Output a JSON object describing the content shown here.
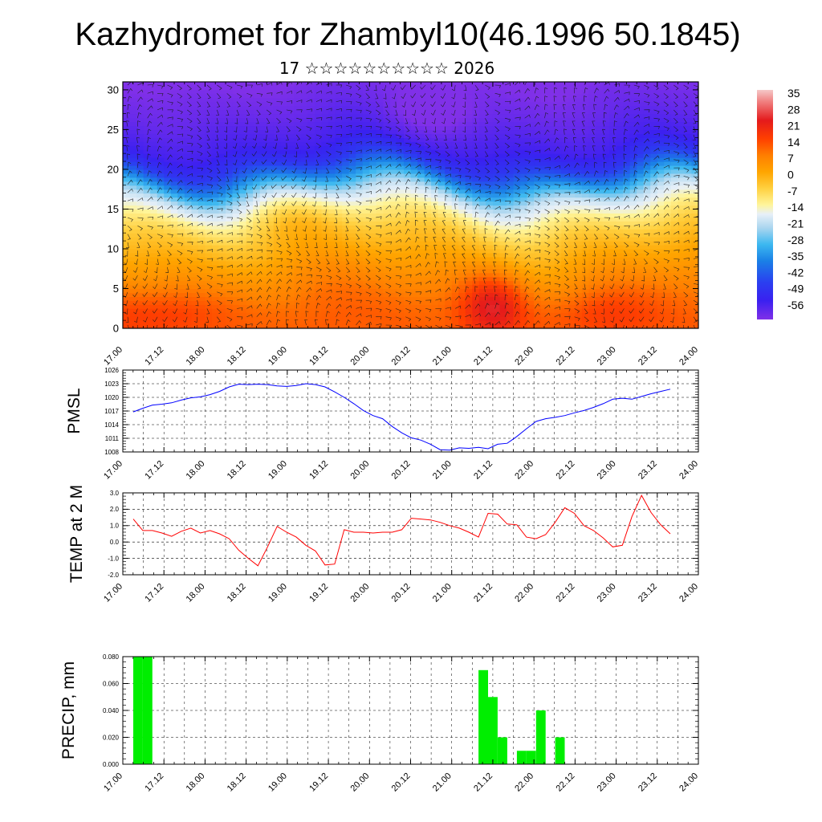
{
  "page": {
    "title": "Kazhydromet for Zhambyl10(46.1996 50.1845)",
    "subtitle": "17 ☆☆☆☆☆☆☆☆☆☆ 2026"
  },
  "chart_data": [
    {
      "id": "cross-section",
      "type": "heatmap",
      "title": "",
      "xlabel": "",
      "ylabel": "",
      "x_ticks": [
        "17.00",
        "17.12",
        "18.00",
        "18.12",
        "19.00",
        "19.12",
        "20.00",
        "20.12",
        "21.00",
        "21.12",
        "22.00",
        "22.12",
        "23.00",
        "23.12",
        "24.00"
      ],
      "y_ticks": [
        "0",
        "5",
        "10",
        "15",
        "20",
        "25",
        "30"
      ],
      "xlim": [
        0,
        168
      ],
      "ylim": [
        0,
        31
      ],
      "colorbar": {
        "labels": [
          "35",
          "28",
          "21",
          "14",
          "7",
          "0",
          "-7",
          "-14",
          "-21",
          "-28",
          "-35",
          "-42",
          "-49",
          "-56"
        ],
        "stops": [
          {
            "v": 38,
            "color": "#f5c8c8"
          },
          {
            "v": 33,
            "color": "#f08080"
          },
          {
            "v": 25,
            "color": "#e41a1c"
          },
          {
            "v": 17,
            "color": "#ff4000"
          },
          {
            "v": 10,
            "color": "#ff7f00"
          },
          {
            "v": 3,
            "color": "#ffa500"
          },
          {
            "v": -4,
            "color": "#ffd040"
          },
          {
            "v": -11,
            "color": "#fff59a"
          },
          {
            "v": -15,
            "color": "#e8f0f8"
          },
          {
            "v": -21,
            "color": "#a9d5ef"
          },
          {
            "v": -28,
            "color": "#3cb8f0"
          },
          {
            "v": -35,
            "color": "#1a80e6"
          },
          {
            "v": -44,
            "color": "#2a40f0"
          },
          {
            "v": -52,
            "color": "#3a20f0"
          },
          {
            "v": -60,
            "color": "#8030e8"
          }
        ]
      },
      "color_field_profile": [
        {
          "z": 0,
          "v": 14
        },
        {
          "z": 3,
          "v": 12
        },
        {
          "z": 6,
          "v": 8
        },
        {
          "z": 9,
          "v": 3
        },
        {
          "z": 12,
          "v": -3
        },
        {
          "z": 14,
          "v": -9
        },
        {
          "z": 15,
          "v": -13
        },
        {
          "z": 16.5,
          "v": -18
        },
        {
          "z": 18,
          "v": -28
        },
        {
          "z": 19.5,
          "v": -38
        },
        {
          "z": 21,
          "v": -47
        },
        {
          "z": 23,
          "v": -53
        },
        {
          "z": 25,
          "v": -55
        },
        {
          "z": 27,
          "v": -57
        },
        {
          "z": 30,
          "v": -59
        },
        {
          "z": 31,
          "v": -60
        }
      ],
      "hotspots": [
        {
          "t": 10,
          "z": 2,
          "dv": 6,
          "rt": 18,
          "rz": 3
        },
        {
          "t": 108,
          "z": 3,
          "dv": 14,
          "rt": 9,
          "rz": 4
        },
        {
          "t": 140,
          "z": 2,
          "dv": 5,
          "rt": 16,
          "rz": 3
        },
        {
          "t": 50,
          "z": 14,
          "dv": 4,
          "rt": 14,
          "rz": 3
        },
        {
          "t": 90,
          "z": 27,
          "dv": -5,
          "rt": 12,
          "rz": 3
        }
      ]
    },
    {
      "id": "pmsl",
      "type": "line",
      "title": "",
      "xlabel": "",
      "ylabel": "PMSL",
      "color": "#0000ff",
      "x_ticks": [
        "17.00",
        "17.12",
        "18.00",
        "18.12",
        "19.00",
        "19.12",
        "20.00",
        "20.12",
        "21.00",
        "21.12",
        "22.00",
        "22.12",
        "23.00",
        "23.12",
        "24.00"
      ],
      "y_ticks": [
        "1008",
        "1011",
        "1014",
        "1017",
        "1020",
        "1023",
        "1026"
      ],
      "ylim": [
        1008,
        1026
      ],
      "x": [
        0,
        3,
        6,
        9,
        12,
        15,
        18,
        21,
        24,
        27,
        30,
        33,
        36,
        39,
        42,
        45,
        48,
        51,
        54,
        57,
        60,
        63,
        66,
        69,
        72,
        75,
        78,
        81,
        84,
        87,
        90,
        93,
        96,
        99,
        102,
        105,
        108,
        111,
        114,
        117,
        120,
        123,
        126,
        129,
        132,
        135,
        138,
        141,
        144,
        147,
        150,
        153,
        156,
        159,
        162,
        165,
        168
      ],
      "values": [
        1016.8,
        1017.6,
        1018.3,
        1018.5,
        1018.8,
        1019.4,
        1019.9,
        1020.1,
        1020.6,
        1021.3,
        1022.3,
        1022.9,
        1022.8,
        1022.9,
        1022.8,
        1022.5,
        1022.4,
        1022.6,
        1023.0,
        1022.8,
        1022.3,
        1021.2,
        1020.0,
        1018.6,
        1017.1,
        1016.0,
        1015.3,
        1013.6,
        1012.2,
        1011.1,
        1010.6,
        1009.7,
        1008.5,
        1008.4,
        1008.9,
        1008.8,
        1009.0,
        1008.7,
        1009.7,
        1009.9,
        1011.4,
        1013.1,
        1014.7,
        1015.3,
        1015.6,
        1016.0,
        1016.6,
        1017.1,
        1017.8,
        1018.6,
        1019.6,
        1019.8,
        1019.6,
        1020.2,
        1020.8,
        1021.3,
        1021.8
      ]
    },
    {
      "id": "temp2m",
      "type": "line",
      "title": "",
      "xlabel": "",
      "ylabel": "TEMP at 2 M",
      "color": "#ff0000",
      "x_ticks": [
        "17.00",
        "17.12",
        "18.00",
        "18.12",
        "19.00",
        "19.12",
        "20.00",
        "20.12",
        "21.00",
        "21.12",
        "22.00",
        "22.12",
        "23.00",
        "23.12",
        "24.00"
      ],
      "y_ticks": [
        "-2.0",
        "-1.0",
        "0.0",
        "1.0",
        "2.0",
        "3.0"
      ],
      "ylim": [
        -2,
        3
      ],
      "x": [
        0,
        3,
        6,
        9,
        12,
        15,
        18,
        21,
        24,
        27,
        30,
        33,
        36,
        39,
        42,
        45,
        48,
        51,
        54,
        57,
        60,
        63,
        66,
        69,
        72,
        75,
        78,
        81,
        84,
        87,
        90,
        93,
        96,
        99,
        102,
        105,
        108,
        111,
        114,
        117,
        120,
        123,
        126,
        129,
        132,
        135,
        138,
        141,
        144,
        147,
        150,
        153,
        156,
        159,
        162,
        165,
        168
      ],
      "values": [
        1.4,
        0.7,
        0.7,
        0.55,
        0.35,
        0.65,
        0.85,
        0.55,
        0.7,
        0.5,
        0.2,
        -0.5,
        -1.0,
        -1.45,
        -0.3,
        0.95,
        0.6,
        0.3,
        -0.2,
        -0.55,
        -1.4,
        -1.35,
        0.75,
        0.6,
        0.6,
        0.55,
        0.6,
        0.6,
        0.75,
        1.45,
        1.4,
        1.35,
        1.2,
        1.0,
        0.85,
        0.6,
        0.3,
        1.75,
        1.7,
        1.1,
        1.05,
        0.3,
        0.2,
        0.45,
        1.2,
        2.1,
        1.75,
        1.0,
        0.7,
        0.25,
        -0.3,
        -0.2,
        1.55,
        2.85,
        1.8,
        1.05,
        0.5
      ]
    },
    {
      "id": "precip",
      "type": "bar",
      "title": "",
      "xlabel": "",
      "ylabel": "PRECIP, mm",
      "color": "#00ee00",
      "x_ticks": [
        "17.00",
        "17.12",
        "18.00",
        "18.12",
        "19.00",
        "19.12",
        "20.00",
        "20.12",
        "21.00",
        "21.12",
        "22.00",
        "22.12",
        "23.00",
        "23.12",
        "24.00"
      ],
      "y_ticks": [
        "0.000",
        "0.020",
        "0.040",
        "0.060",
        "0.080"
      ],
      "ylim": [
        0,
        0.08
      ],
      "bar_width_hours": 3,
      "x": [
        0,
        3,
        108,
        111,
        114,
        120,
        123,
        126,
        132
      ],
      "values": [
        0.08,
        0.08,
        0.07,
        0.05,
        0.02,
        0.01,
        0.01,
        0.04,
        0.02
      ]
    }
  ]
}
